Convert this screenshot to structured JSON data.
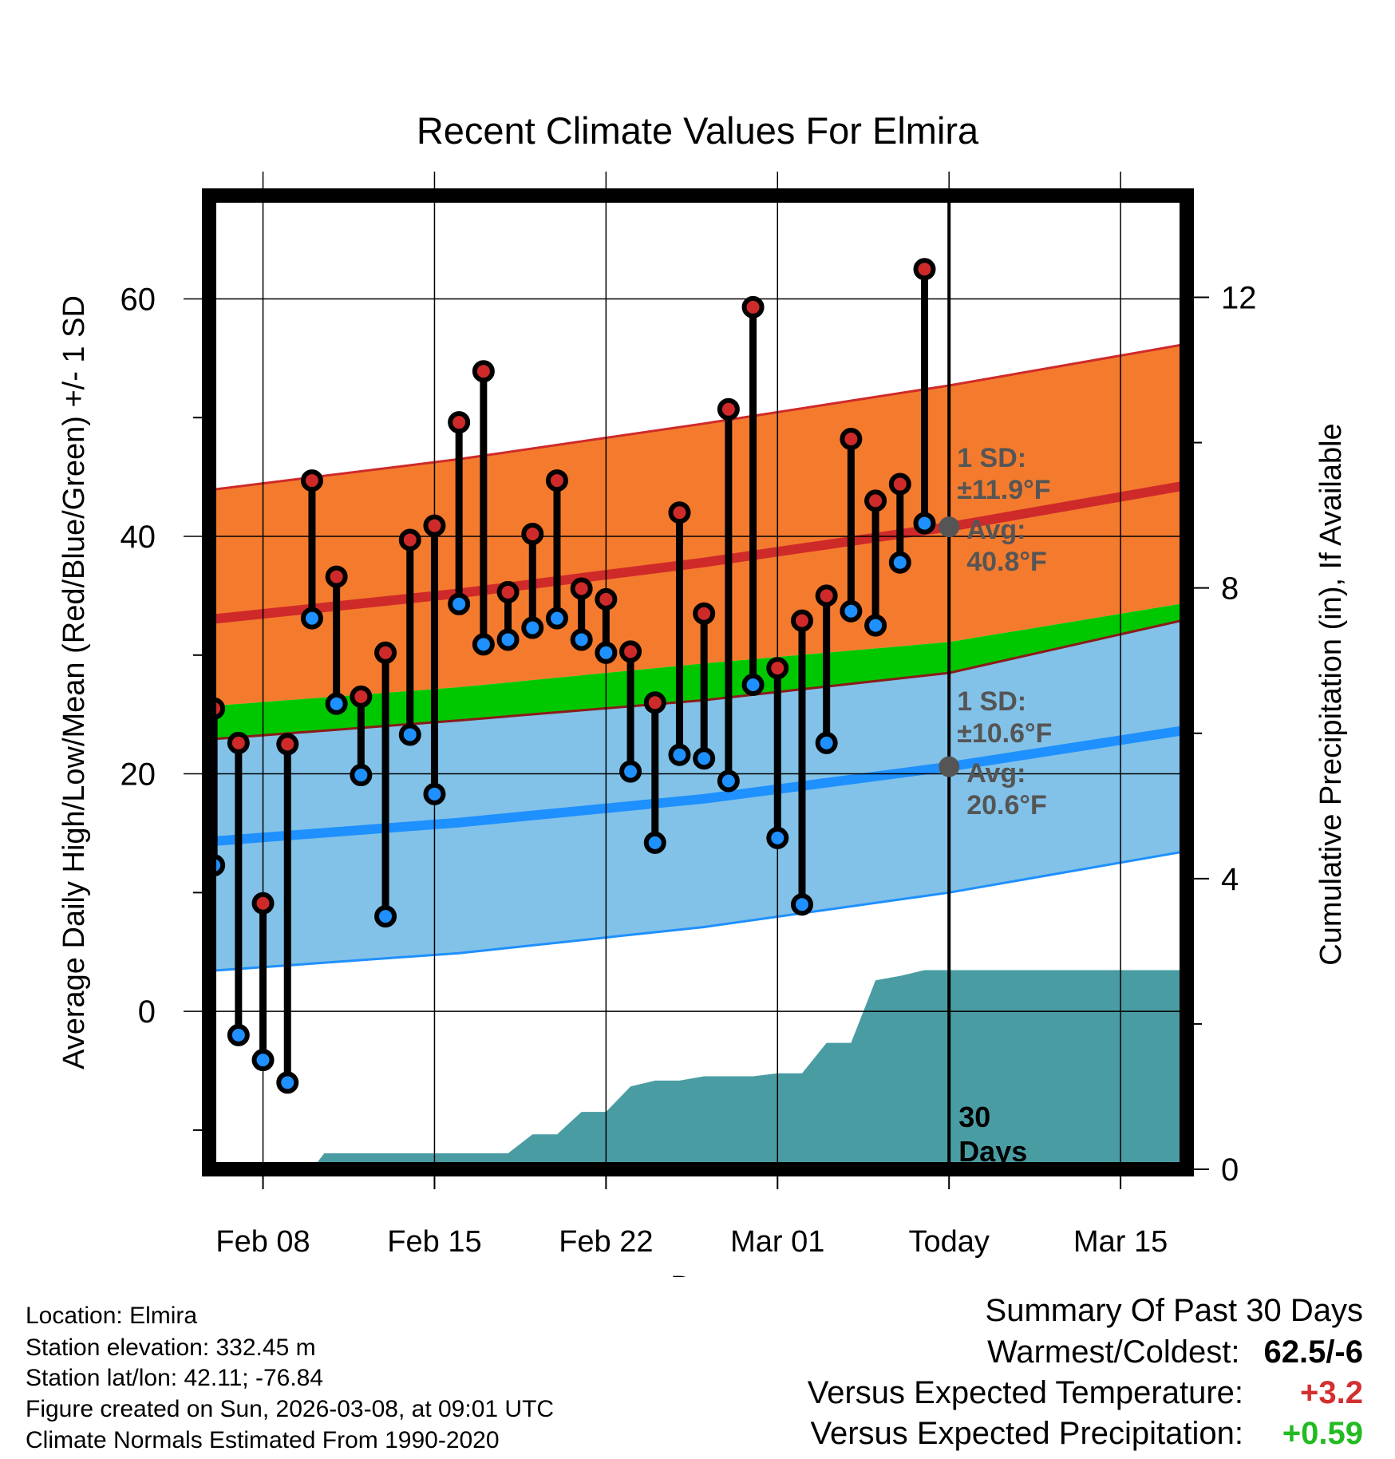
{
  "chart_data": {
    "type": "line",
    "title": "Recent Climate Values For Elmira",
    "xlabel": "Day",
    "ylabel": "Average Daily High/Low/Mean (Red/Blue/Green) +/- 1 SD",
    "y2label": "Cumulative Precipitation (in), If Available",
    "x_tick_labels": [
      "Feb 08",
      "Feb 15",
      "Feb 22",
      "Mar 01",
      "Today",
      "Mar 15"
    ],
    "y_ticks": [
      0,
      20,
      40,
      60
    ],
    "y2_ticks": [
      0,
      4,
      8,
      12
    ],
    "ylim": [
      -13.3,
      68.7
    ],
    "y2lim": [
      0,
      13.4
    ],
    "xlim": [
      -30.2,
      9.7
    ],
    "dates_note": "x = days relative to today (0 = Mar 08); Feb 08 = -28, Feb 15 = -21, Feb 22 = -14, Mar 01 = -7, Mar 15 = +7",
    "daily": {
      "day": [
        -30,
        -29,
        -28,
        -27,
        -26,
        -25,
        -24,
        -23,
        -22,
        -21,
        -20,
        -19,
        -18,
        -17,
        -16,
        -15,
        -14,
        -13,
        -12,
        -11,
        -10,
        -9,
        -8,
        -7,
        -6,
        -5,
        -4,
        -3,
        -2,
        -1
      ],
      "high": [
        25.5,
        22.6,
        9.1,
        22.5,
        44.7,
        36.6,
        26.5,
        30.2,
        39.7,
        40.9,
        49.6,
        53.9,
        35.3,
        40.2,
        44.7,
        35.6,
        34.7,
        30.3,
        26.0,
        42.0,
        33.5,
        50.7,
        59.3,
        28.9,
        32.9,
        35.0,
        48.2,
        43.0,
        44.4,
        62.5
      ],
      "low": [
        12.3,
        -2.0,
        -4.1,
        -6.0,
        33.1,
        25.9,
        19.9,
        8.0,
        23.3,
        18.3,
        34.3,
        30.9,
        31.3,
        32.3,
        33.1,
        31.3,
        30.2,
        20.2,
        14.2,
        21.6,
        21.3,
        19.4,
        27.5,
        14.6,
        9.0,
        22.6,
        33.7,
        32.5,
        37.8,
        41.1
      ]
    },
    "normals": {
      "day": [
        -30.2,
        -20,
        -10,
        0,
        9.7
      ],
      "high_avg": [
        33.0,
        35.2,
        37.8,
        40.8,
        44.3
      ],
      "high_sd_upper": [
        43.9,
        46.5,
        49.5,
        52.7,
        56.2
      ],
      "low_avg": [
        14.3,
        15.9,
        17.9,
        20.6,
        23.7
      ],
      "low_sd_lower": [
        3.4,
        4.9,
        7.1,
        10.0,
        13.5
      ],
      "mean_upper": [
        25.7,
        27.3,
        29.3,
        31.1,
        34.4
      ],
      "mean_lower": [
        22.9,
        24.5,
        26.2,
        28.5,
        33.0
      ]
    },
    "annotations": {
      "high_sd_label": "1 SD:",
      "high_sd_value": "±11.9°F",
      "high_avg_label": "Avg:",
      "high_avg_value": "40.8°F",
      "high_avg": 40.8,
      "low_sd_label": "1 SD:",
      "low_sd_value": "±10.6°F",
      "low_avg_label": "Avg:",
      "low_avg_value": "20.6°F",
      "low_avg": 20.6,
      "days_label_1": "30",
      "days_label_2": "Days"
    },
    "precipitation": {
      "day": [
        -26,
        -25.5,
        -18,
        -17,
        -16,
        -15,
        -14,
        -13,
        -12,
        -11,
        -10,
        -9,
        -8,
        -7,
        -6,
        -5,
        -4,
        -3,
        -2,
        -1,
        0,
        9.7
      ],
      "cumulative": [
        0,
        0.22,
        0.22,
        0.48,
        0.48,
        0.79,
        0.79,
        1.14,
        1.22,
        1.22,
        1.28,
        1.28,
        1.28,
        1.32,
        1.32,
        1.74,
        1.74,
        2.6,
        2.66,
        2.74,
        2.74,
        2.74
      ]
    },
    "colors": {
      "high_band": "#f47b2e",
      "high_line": "#cf2a2a",
      "low_band": "#82c2e8",
      "low_line": "#1e90ff",
      "mean_band": "#00c800",
      "mean_band_dark": "#8b1a1a",
      "precip": "#4a9ca3",
      "high_dot": "#cf2a2a",
      "low_dot": "#1e90ff",
      "today_marker": "#555555",
      "annotation_text": "#555555"
    }
  },
  "footer": {
    "location": "Location: Elmira",
    "elevation": "Station elevation: 332.45 m",
    "latlon": "Station lat/lon: 42.11; -76.84",
    "created": "Figure created on Sun, 2026-03-08, at 09:01 UTC",
    "normals": "Climate Normals Estimated From 1990-2020"
  },
  "summary": {
    "title": "Summary Of Past 30 Days",
    "warmest_label": "Warmest/Coldest:",
    "warmest_value": "62.5/-6",
    "temp_label": "Versus Expected Temperature:",
    "temp_value": "+3.2",
    "temp_color": "#d32f2f",
    "precip_label": "Versus Expected Precipitation:",
    "precip_value": "+0.59",
    "precip_color": "#22bb22"
  }
}
